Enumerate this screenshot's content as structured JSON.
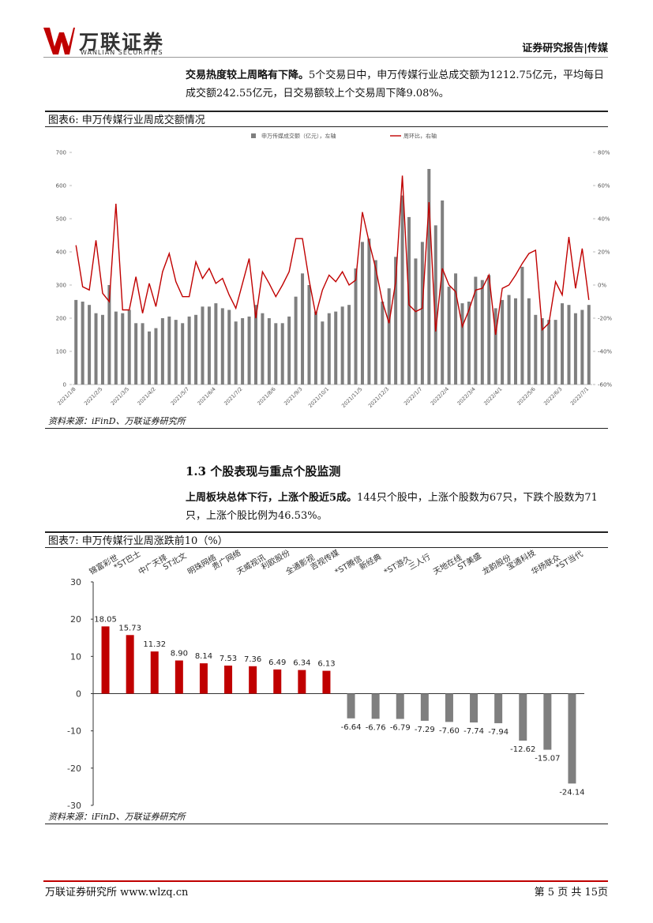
{
  "header": {
    "logo_cn": "万联证券",
    "logo_en": "WANLIAN SECURITIES",
    "report_type": "证券研究报告|传媒"
  },
  "paragraphs": [
    {
      "lead": "交易热度较上周略有下降。",
      "text": "5个交易日中，申万传媒行业总成交额为1212.75亿元，平均每日成交额242.55亿元，日交易额较上个交易周下降9.08%。"
    },
    {
      "lead": "上周板块总体下行，上涨个股近5成。",
      "text": "144只个股中，上涨个股数为67只，下跌个股数为71只，上涨个股比例为46.53%。"
    }
  ],
  "section_heading": "1.3 个股表现与重点个股监测",
  "footer": {
    "left": "万联证券研究所 www.wlzq.cn",
    "right": "第 5 页 共 15页"
  },
  "chart_data": [
    {
      "type": "combo",
      "title": "图表6: 申万传媒行业周成交额情况",
      "source": "资料来源：iFinD、万联证券研究所",
      "legend": "top",
      "categories": [
        "2021/1/8",
        null,
        null,
        null,
        "2021/2/5",
        null,
        null,
        null,
        "2021/3/5",
        null,
        null,
        null,
        "2021/4/2",
        null,
        null,
        null,
        null,
        "2021/5/7",
        null,
        null,
        null,
        "2021/6/4",
        null,
        null,
        null,
        "2021/7/2",
        null,
        null,
        null,
        null,
        "2021/8/6",
        null,
        null,
        null,
        "2021/9/3",
        null,
        null,
        null,
        "2021/10/1",
        null,
        null,
        null,
        null,
        "2021/11/5",
        null,
        null,
        null,
        "2021/12/3",
        null,
        null,
        null,
        null,
        "2022/1/7",
        null,
        null,
        null,
        "2022/2/4",
        null,
        null,
        null,
        "2022/3/4",
        null,
        null,
        null,
        "2022/4/1",
        null,
        null,
        null,
        null,
        "2022/5/6",
        null,
        null,
        null,
        "2022/6/3",
        null,
        null,
        null,
        "2022/7/1"
      ],
      "series": [
        {
          "name": "申万传媒成交额（亿元），左轴",
          "type": "bar",
          "color": "#7f7f7f",
          "values": [
            255,
            250,
            240,
            215,
            210,
            300,
            220,
            215,
            225,
            185,
            185,
            160,
            170,
            200,
            205,
            195,
            185,
            205,
            210,
            235,
            235,
            245,
            230,
            225,
            190,
            200,
            205,
            240,
            215,
            200,
            185,
            185,
            205,
            265,
            335,
            300,
            220,
            190,
            215,
            220,
            235,
            240,
            350,
            430,
            440,
            375,
            250,
            290,
            385,
            570,
            505,
            380,
            430,
            650,
            480,
            555,
            295,
            335,
            245,
            250,
            325,
            315,
            330,
            230,
            255,
            270,
            260,
            355,
            260,
            210,
            200,
            195,
            195,
            245,
            240,
            215,
            225,
            240
          ]
        },
        {
          "name": "周环比，右轴",
          "type": "line",
          "color": "#c00000",
          "axis": "y2",
          "values": [
            24,
            -1,
            -3,
            27,
            -5,
            -10,
            49,
            -15,
            -15,
            5,
            -17,
            1,
            -13,
            8,
            19,
            2,
            -7,
            -7,
            14,
            4,
            10,
            1,
            4,
            -6,
            -14,
            1,
            16,
            -20,
            8,
            1,
            -7,
            0,
            8,
            28,
            28,
            3,
            -18,
            -3,
            6,
            2,
            8,
            0,
            3,
            44,
            26,
            10,
            -10,
            -23,
            2,
            66,
            -12,
            -16,
            -14,
            50,
            -28,
            10,
            0,
            -4,
            -25,
            -15,
            -3,
            -2,
            6,
            -30,
            -2,
            0,
            6,
            13,
            19,
            21,
            -27,
            -23,
            2,
            -6,
            29,
            -2,
            22,
            -9
          ]
        }
      ],
      "ylim": [
        0,
        700
      ],
      "yticks": [
        0,
        100,
        200,
        300,
        400,
        500,
        600,
        700
      ],
      "y2lim": [
        -60,
        80
      ],
      "y2ticks": [
        {
          "value": -60,
          "label": "-60%"
        },
        {
          "value": -40,
          "label": "-40%"
        },
        {
          "value": -20,
          "label": "-20%"
        },
        {
          "value": 0,
          "label": "0%"
        },
        {
          "value": 20,
          "label": "20%"
        },
        {
          "value": 40,
          "label": "40%"
        },
        {
          "value": 60,
          "label": "60%"
        },
        {
          "value": 80,
          "label": "80%"
        }
      ]
    },
    {
      "type": "bar",
      "title": "图表7: 申万传媒行业周涨跌前10（%）",
      "source": "资料来源：iFinD、万联证券研究所",
      "categories": [
        "锦富彩世",
        "*ST巴士",
        "中广天择",
        "ST北文",
        "明珠网络",
        "贵广网络",
        "天威视讯",
        "利欧股份",
        "全通影视",
        "吉视传媒",
        "*ST腾信",
        "新经典",
        "*ST游久",
        "三人行",
        "天地在线",
        "ST美盛",
        "龙韵股份",
        "宝通科技",
        "华扬联众",
        "*ST当代"
      ],
      "values": [
        18.05,
        15.73,
        11.32,
        8.9,
        8.14,
        7.53,
        7.36,
        6.49,
        6.34,
        6.13,
        -6.64,
        -6.76,
        -6.79,
        -7.29,
        -7.6,
        -7.74,
        -7.94,
        -12.62,
        -15.07,
        -24.14
      ],
      "value_labels": [
        "18.05",
        "15.73",
        "11.32",
        "8.90",
        "8.14",
        "7.53",
        "7.36",
        "6.49",
        "6.34",
        "6.13",
        "-6.64",
        "-6.76",
        "-6.79",
        "-7.29",
        "-7.60",
        "-7.74",
        "-7.94",
        "-12.62",
        "-15.07",
        "-24.14"
      ],
      "color": "#c00000",
      "negative_color": "#7f7f7f",
      "ylim": [
        -30,
        30
      ],
      "yticks": [
        -30,
        -20,
        -10,
        0,
        10,
        20,
        30
      ]
    }
  ]
}
